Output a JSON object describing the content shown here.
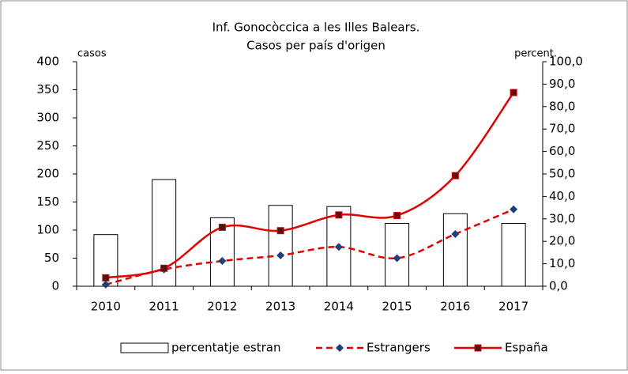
{
  "chart_data": {
    "type": "bar-line",
    "title": "Inf. Gonocòccica  a les Illes Balears.",
    "subtitle": "Casos per país d'origen",
    "y_label": "casos",
    "y2_label": "percent.",
    "categories": [
      "2010",
      "2011",
      "2012",
      "2013",
      "2014",
      "2015",
      "2016",
      "2017"
    ],
    "series": [
      {
        "name": "percentatje  estran",
        "type": "bar",
        "axis": "y2",
        "color": "#ffffff",
        "values": [
          23,
          47.5,
          30.5,
          36,
          35.5,
          28,
          32.3,
          28
        ]
      },
      {
        "name": "Estrangers",
        "type": "line",
        "dashed": true,
        "marker": "diamond",
        "color": "#e00000",
        "values": [
          3,
          30,
          45,
          55,
          70,
          50,
          93,
          137
        ]
      },
      {
        "name": "España",
        "type": "line",
        "dashed": false,
        "marker": "square",
        "color": "#e00000",
        "values": [
          15,
          32,
          105,
          99,
          127,
          126,
          197,
          345
        ]
      }
    ],
    "ylim": [
      0,
      400
    ],
    "yticks": [
      0,
      50,
      100,
      150,
      200,
      250,
      300,
      350,
      400
    ],
    "y2lim": [
      0,
      100
    ],
    "y2ticks": [
      {
        "value": 0,
        "label": "0,0"
      },
      {
        "value": 10,
        "label": "10,0"
      },
      {
        "value": 20,
        "label": "20,0"
      },
      {
        "value": 30,
        "label": "30,0"
      },
      {
        "value": 40,
        "label": "40,0"
      },
      {
        "value": 50,
        "label": "50,0"
      },
      {
        "value": 60,
        "label": "60,0"
      },
      {
        "value": 70,
        "label": "70,0"
      },
      {
        "value": 80,
        "label": "80,0"
      },
      {
        "value": 90,
        "label": "90,0"
      },
      {
        "value": 100,
        "label": "100,0"
      }
    ],
    "legend": "bottom"
  }
}
